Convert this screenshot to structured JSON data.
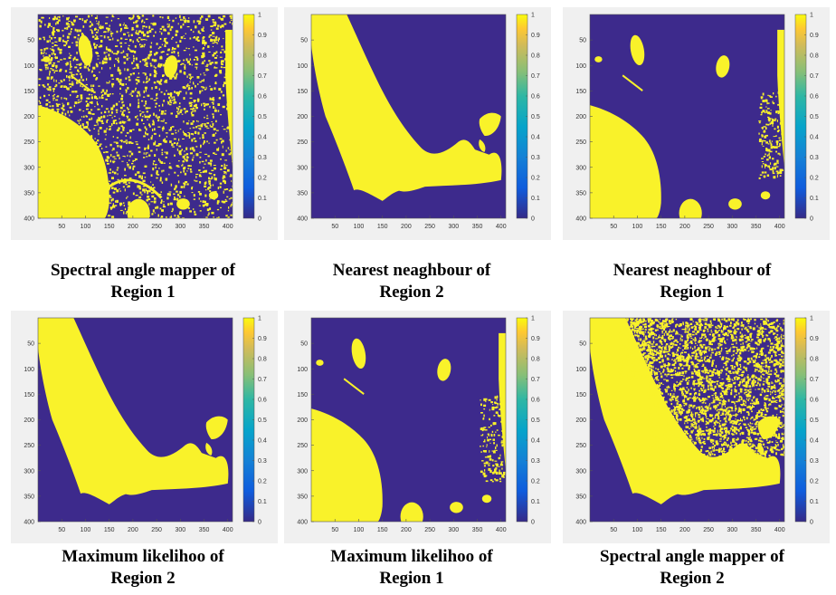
{
  "colors": {
    "background_class": "#3d2a8c",
    "foreground_class": "#f9f22a",
    "panel_bg": "#f0f0f0"
  },
  "chart_data": [
    {
      "type": "heatmap",
      "position": "row-1-col-1",
      "caption": {
        "line1": "Spectral angle mapper of",
        "line2": "Region 1"
      },
      "xticks": [
        "50",
        "100",
        "150",
        "200",
        "250",
        "300",
        "350",
        "400"
      ],
      "yticks": [
        "50",
        "100",
        "150",
        "200",
        "250",
        "300",
        "350",
        "400"
      ],
      "colorbar_ticks": [
        "1",
        "0.9",
        "0.8",
        "0.7",
        "0.6",
        "0.5",
        "0.4",
        "0.3",
        "0.2",
        "0.1",
        "0"
      ],
      "xlim": [
        0,
        410
      ],
      "ylim": [
        0,
        400
      ],
      "clim": [
        0,
        1
      ],
      "colormap": "parula"
    },
    {
      "type": "heatmap",
      "position": "row-1-col-2",
      "caption": {
        "line1": "Nearest neaghbour of",
        "line2": "Region 2"
      },
      "xticks": [
        "50",
        "100",
        "150",
        "200",
        "250",
        "300",
        "350",
        "400"
      ],
      "yticks": [
        "50",
        "100",
        "150",
        "200",
        "250",
        "300",
        "350",
        "400"
      ],
      "colorbar_ticks": [
        "1",
        "0.9",
        "0.8",
        "0.7",
        "0.6",
        "0.5",
        "0.4",
        "0.3",
        "0.2",
        "0.1",
        "0"
      ],
      "xlim": [
        0,
        410
      ],
      "ylim": [
        0,
        400
      ],
      "clim": [
        0,
        1
      ],
      "colormap": "parula"
    },
    {
      "type": "heatmap",
      "position": "row-1-col-3",
      "caption": {
        "line1": "Nearest neaghbour of",
        "line2": "Region 1"
      },
      "xticks": [
        "50",
        "100",
        "150",
        "200",
        "250",
        "300",
        "350",
        "400"
      ],
      "yticks": [
        "50",
        "100",
        "150",
        "200",
        "250",
        "300",
        "350",
        "400"
      ],
      "colorbar_ticks": [
        "1",
        "0.9",
        "0.8",
        "0.7",
        "0.6",
        "0.5",
        "0.4",
        "0.3",
        "0.2",
        "0.1",
        "0"
      ],
      "xlim": [
        0,
        410
      ],
      "ylim": [
        0,
        400
      ],
      "clim": [
        0,
        1
      ],
      "colormap": "parula"
    },
    {
      "type": "heatmap",
      "position": "row-2-col-1",
      "caption": {
        "line1": "Maximum likelihoo of",
        "line2": "Region 2"
      },
      "xticks": [
        "50",
        "100",
        "150",
        "200",
        "250",
        "300",
        "350",
        "400"
      ],
      "yticks": [
        "50",
        "100",
        "150",
        "200",
        "250",
        "300",
        "350",
        "400"
      ],
      "colorbar_ticks": [
        "1",
        "0.9",
        "0.8",
        "0.7",
        "0.6",
        "0.5",
        "0.4",
        "0.3",
        "0.2",
        "0.1",
        "0"
      ],
      "xlim": [
        0,
        410
      ],
      "ylim": [
        0,
        400
      ],
      "clim": [
        0,
        1
      ],
      "colormap": "parula"
    },
    {
      "type": "heatmap",
      "position": "row-2-col-2",
      "caption": {
        "line1": "Maximum likelihoo of",
        "line2": "Region 1"
      },
      "xticks": [
        "50",
        "100",
        "150",
        "200",
        "250",
        "300",
        "350",
        "400"
      ],
      "yticks": [
        "50",
        "100",
        "150",
        "200",
        "250",
        "300",
        "350",
        "400"
      ],
      "colorbar_ticks": [
        "1",
        "0.9",
        "0.8",
        "0.7",
        "0.6",
        "0.5",
        "0.4",
        "0.3",
        "0.2",
        "0.1",
        "0"
      ],
      "xlim": [
        0,
        410
      ],
      "ylim": [
        0,
        400
      ],
      "clim": [
        0,
        1
      ],
      "colormap": "parula"
    },
    {
      "type": "heatmap",
      "position": "row-2-col-3",
      "caption": {
        "line1": "Spectral angle mapper of",
        "line2": "Region 2"
      },
      "xticks": [
        "50",
        "100",
        "150",
        "200",
        "250",
        "300",
        "350",
        "400"
      ],
      "yticks": [
        "50",
        "100",
        "150",
        "200",
        "250",
        "300",
        "350",
        "400"
      ],
      "colorbar_ticks": [
        "1",
        "0.9",
        "0.8",
        "0.7",
        "0.6",
        "0.5",
        "0.4",
        "0.3",
        "0.2",
        "0.1",
        "0"
      ],
      "xlim": [
        0,
        410
      ],
      "ylim": [
        0,
        400
      ],
      "clim": [
        0,
        1
      ],
      "colormap": "parula"
    }
  ]
}
